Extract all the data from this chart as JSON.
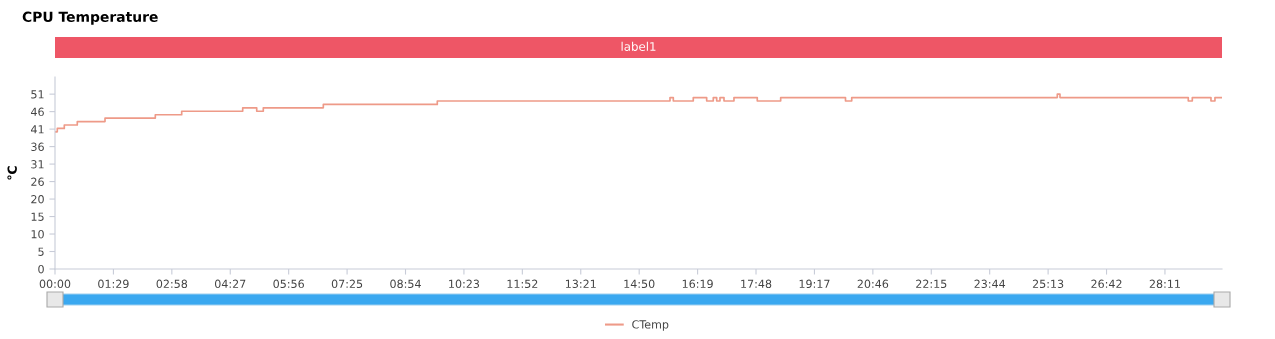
{
  "chart_data": {
    "type": "line",
    "title": "CPU Temperature",
    "annotations": [
      "label1"
    ],
    "ylabel": "℃",
    "x": [
      0,
      0.058,
      0.058,
      0.236,
      0.236,
      0.566,
      0.566,
      1.27,
      1.27,
      2.547,
      2.547,
      3.217,
      3.217,
      4.766,
      4.766,
      5.122,
      5.122,
      5.289,
      5.289,
      6.813,
      6.813,
      9.707,
      9.707,
      15.616,
      15.616,
      15.7,
      15.7,
      16.207,
      16.207,
      16.547,
      16.547,
      16.715,
      16.715,
      16.801,
      16.801,
      16.885,
      16.885,
      16.987,
      16.987,
      17.24,
      17.24,
      17.832,
      17.832,
      18.426,
      18.426,
      20.072,
      20.072,
      20.23,
      20.23,
      25.45,
      25.45,
      25.518,
      25.518,
      28.776,
      28.776,
      28.878,
      28.878,
      29.352,
      29.352,
      29.453,
      29.453,
      29.632
    ],
    "series": [
      {
        "name": "CTemp",
        "color": "#ee9a88",
        "values": [
          40,
          40,
          41,
          41,
          42,
          42,
          43,
          43,
          44,
          44,
          45,
          45,
          46,
          46,
          47,
          47,
          46,
          46,
          47,
          47,
          48,
          48,
          49,
          49,
          50,
          50,
          49,
          49,
          50,
          50,
          49,
          49,
          50,
          50,
          49,
          49,
          50,
          50,
          49,
          49,
          50,
          50,
          49,
          49,
          50,
          50,
          49,
          49,
          50,
          50,
          51,
          51,
          50,
          50,
          49,
          49,
          50,
          50,
          49,
          49,
          50,
          50
        ]
      }
    ],
    "xlim": [
      0,
      29.632
    ],
    "ylim": [
      0,
      56
    ],
    "xticks": [
      {
        "value": 0,
        "label": "00:00"
      },
      {
        "value": 1.4833,
        "label": "01:29"
      },
      {
        "value": 2.9667,
        "label": "02:58"
      },
      {
        "value": 4.45,
        "label": "04:27"
      },
      {
        "value": 5.9333,
        "label": "05:56"
      },
      {
        "value": 7.4167,
        "label": "07:25"
      },
      {
        "value": 8.9,
        "label": "08:54"
      },
      {
        "value": 10.3833,
        "label": "10:23"
      },
      {
        "value": 11.8667,
        "label": "11:52"
      },
      {
        "value": 13.35,
        "label": "13:21"
      },
      {
        "value": 14.8333,
        "label": "14:50"
      },
      {
        "value": 16.3167,
        "label": "16:19"
      },
      {
        "value": 17.8,
        "label": "17:48"
      },
      {
        "value": 19.2833,
        "label": "19:17"
      },
      {
        "value": 20.7667,
        "label": "20:46"
      },
      {
        "value": 22.25,
        "label": "22:15"
      },
      {
        "value": 23.7333,
        "label": "23:44"
      },
      {
        "value": 25.2167,
        "label": "25:13"
      },
      {
        "value": 26.7,
        "label": "26:42"
      },
      {
        "value": 28.1833,
        "label": "28:11"
      }
    ],
    "yticks": [
      0,
      {
        "value": 5.1,
        "label": "5"
      },
      {
        "value": 10.2,
        "label": "10"
      },
      {
        "value": 15.3,
        "label": "15"
      },
      {
        "value": 20.4,
        "label": "20"
      },
      {
        "value": 25.5,
        "label": "26"
      },
      {
        "value": 30.6,
        "label": "31"
      },
      {
        "value": 35.7,
        "label": "36"
      },
      {
        "value": 40.8,
        "label": "41"
      },
      {
        "value": 45.9,
        "label": "46"
      },
      51
    ],
    "grid": false,
    "legend": "bottom",
    "marker": "none",
    "line_style": "solid"
  }
}
